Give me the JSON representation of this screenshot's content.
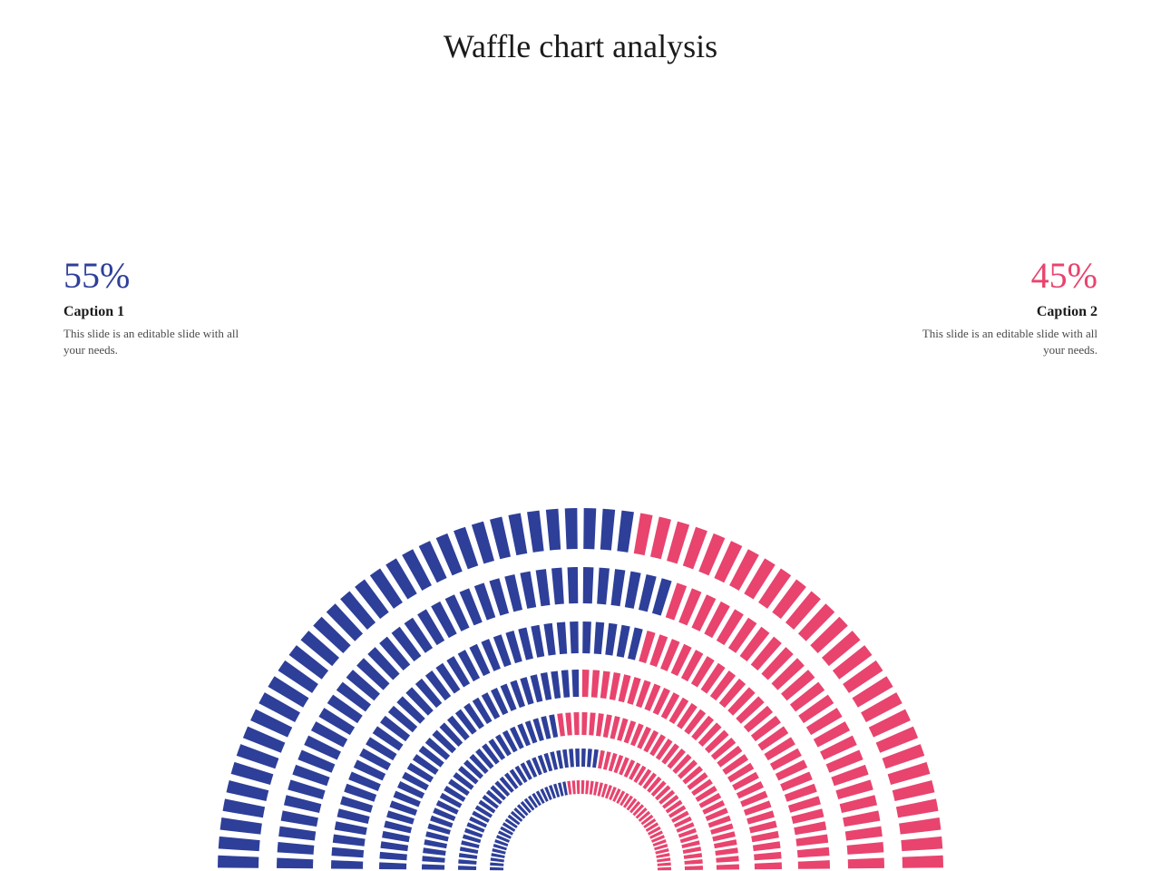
{
  "title": "Waffle chart analysis",
  "chart": {
    "type": "radial-waffle",
    "background_color": "#ffffff",
    "rings": [
      {
        "outer_radius": 400,
        "inner_radius": 355,
        "segments": 60,
        "split": 0.55
      },
      {
        "outer_radius": 335,
        "inner_radius": 295,
        "segments": 60,
        "split": 0.6
      },
      {
        "outer_radius": 275,
        "inner_radius": 240,
        "segments": 60,
        "split": 0.58
      },
      {
        "outer_radius": 222,
        "inner_radius": 192,
        "segments": 60,
        "split": 0.5
      },
      {
        "outer_radius": 175,
        "inner_radius": 150,
        "segments": 60,
        "split": 0.45
      },
      {
        "outer_radius": 135,
        "inner_radius": 115,
        "segments": 60,
        "split": 0.55
      },
      {
        "outer_radius": 100,
        "inner_radius": 85,
        "segments": 60,
        "split": 0.45
      }
    ],
    "color_left": "#2e3f99",
    "color_right": "#e8446e",
    "gap_ratio": 0.35
  },
  "left": {
    "percent": "55%",
    "percent_color": "#2e3f99",
    "caption": "Caption 1",
    "description": "This slide is an editable slide with all your needs."
  },
  "right": {
    "percent": "45%",
    "percent_color": "#e8446e",
    "caption": "Caption 2",
    "description": "This slide is an editable slide with all your needs."
  },
  "typography": {
    "title_fontsize": 36,
    "percent_fontsize": 40,
    "caption_fontsize": 16,
    "desc_fontsize": 13,
    "font_family": "Georgia, serif"
  }
}
